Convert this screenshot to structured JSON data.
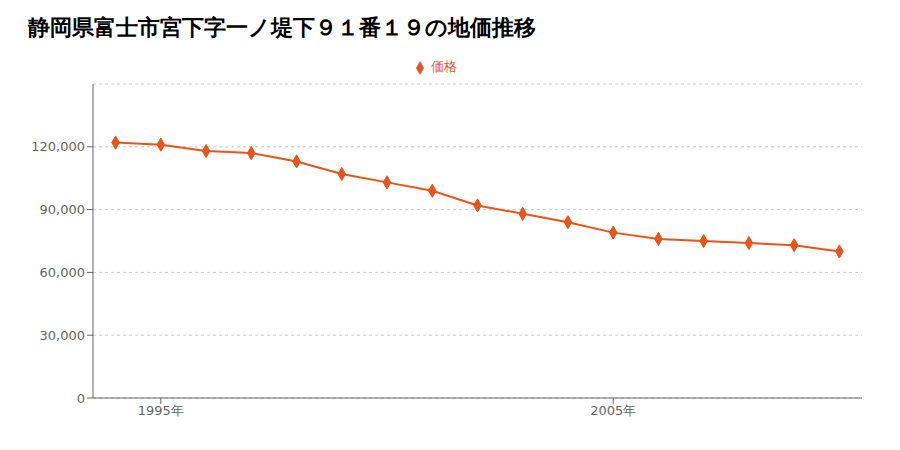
{
  "chart_data": {
    "type": "line",
    "title": "静岡県富士市宮下字一ノ堤下９１番１９の地価推移",
    "x": [
      1994,
      1995,
      1996,
      1997,
      1998,
      1999,
      2000,
      2001,
      2002,
      2003,
      2004,
      2005,
      2006,
      2007,
      2008,
      2009,
      2010
    ],
    "series": [
      {
        "name": "価格",
        "color": "#e8541a",
        "marker": "diamond",
        "values": [
          122000,
          121000,
          118000,
          117000,
          113000,
          107000,
          103000,
          99000,
          92000,
          88000,
          84000,
          79000,
          76000,
          75000,
          74000,
          73000,
          70000
        ]
      }
    ],
    "xlim": [
      1993.5,
      2010.5
    ],
    "xticks": [
      {
        "value": 1995,
        "label": "1995年"
      },
      {
        "value": 2005,
        "label": "2005年"
      }
    ],
    "ylim": [
      0,
      150000
    ],
    "yticks": [
      0,
      {
        "value": 30000,
        "label": "30,000"
      },
      {
        "value": 60000,
        "label": "60,000"
      },
      {
        "value": 90000,
        "label": "90,000"
      },
      {
        "value": 120000,
        "label": "120,000"
      }
    ],
    "grid": "y",
    "legend": "top"
  }
}
